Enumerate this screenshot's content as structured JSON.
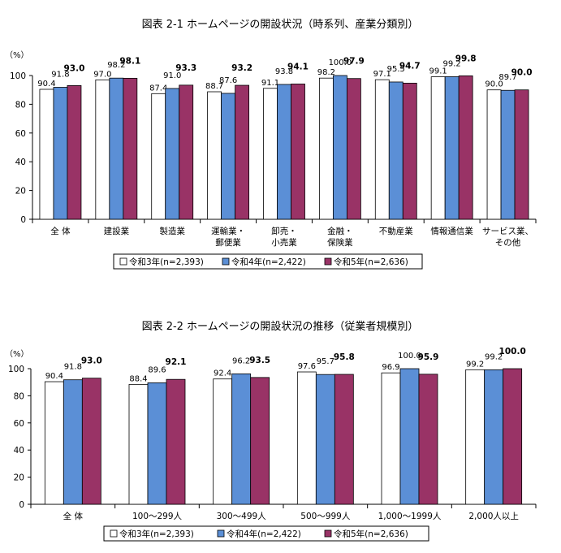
{
  "chart_data": [
    {
      "type": "bar",
      "title": "図表 2-1 ホームページの開設状況（時系列、産業分類別）",
      "ylabel": "（%）",
      "ylim": [
        0,
        100
      ],
      "yticks": [
        0,
        20,
        40,
        60,
        80,
        100
      ],
      "categories": [
        [
          "全 体"
        ],
        [
          "建設業"
        ],
        [
          "製造業"
        ],
        [
          "運輸業・",
          "郵便業"
        ],
        [
          "卸売・",
          "小売業"
        ],
        [
          "金融・",
          "保険業"
        ],
        [
          "不動産業"
        ],
        [
          "情報通信業"
        ],
        [
          "サービス業、",
          "その他"
        ]
      ],
      "series": [
        {
          "name": "令和3年(n=2,393)",
          "color": "#ffffff",
          "values": [
            90.4,
            97.0,
            87.4,
            88.7,
            91.1,
            98.2,
            97.1,
            99.1,
            90.0
          ],
          "labels": [
            "90.4",
            "97.0",
            "87.4",
            "88.7",
            "91.1",
            "98.2",
            "97.1",
            "99.1",
            "90.0"
          ]
        },
        {
          "name": "令和4年(n=2,422)",
          "color": "#5b8fd6",
          "values": [
            91.8,
            98.2,
            91.0,
            87.6,
            93.8,
            100.0,
            95.5,
            99.2,
            89.7
          ],
          "labels": [
            "91.8",
            "98.2",
            "91.0",
            "87.6",
            "93.8",
            "100.0",
            "95.5",
            "99.2",
            "89.7"
          ]
        },
        {
          "name": "令和5年(n=2,636)",
          "color": "#993366",
          "values": [
            93.0,
            98.1,
            93.3,
            93.2,
            94.1,
            97.9,
            94.7,
            99.8,
            90.0
          ],
          "labels": [
            "93.0",
            "98.1",
            "93.3",
            "93.2",
            "94.1",
            "97.9",
            "94.7",
            "99.8",
            "90.0"
          ]
        }
      ],
      "legend_position": "bottom",
      "grid": false
    },
    {
      "type": "bar",
      "title": "図表 2-2 ホームページの開設状況の推移（従業者規模別）",
      "ylabel": "（%）",
      "ylim": [
        0,
        100
      ],
      "yticks": [
        0,
        20,
        40,
        60,
        80,
        100
      ],
      "categories": [
        [
          "全 体"
        ],
        [
          "100～299人"
        ],
        [
          "300～499人"
        ],
        [
          "500～999人"
        ],
        [
          "1,000～1999人"
        ],
        [
          "2,000人以上"
        ]
      ],
      "series": [
        {
          "name": "令和3年(n=2,393)",
          "color": "#ffffff",
          "values": [
            90.4,
            88.4,
            92.4,
            97.6,
            96.9,
            99.2
          ],
          "labels": [
            "90.4",
            "88.4",
            "92.4",
            "97.6",
            "96.9",
            "99.2"
          ]
        },
        {
          "name": "令和4年(n=2,422)",
          "color": "#5b8fd6",
          "values": [
            91.8,
            89.6,
            96.2,
            95.7,
            100.0,
            99.2
          ],
          "labels": [
            "91.8",
            "89.6",
            "96.2",
            "95.7",
            "100.0",
            "99.2"
          ]
        },
        {
          "name": "令和5年(n=2,636)",
          "color": "#993366",
          "values": [
            93.0,
            92.1,
            93.5,
            95.8,
            95.9,
            100.0
          ],
          "labels": [
            "93.0",
            "92.1",
            "93.5",
            "95.8",
            "95.9",
            "100.0"
          ]
        }
      ],
      "legend_position": "bottom",
      "grid": false
    }
  ]
}
